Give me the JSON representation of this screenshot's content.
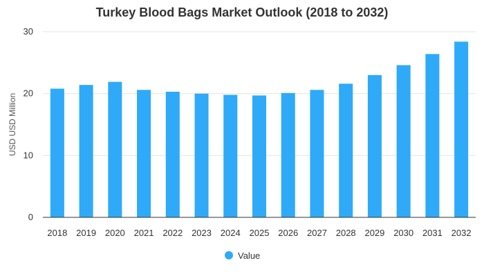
{
  "chart_data": {
    "type": "bar",
    "title": "Turkey Blood Bags Market Outlook (2018 to 2032)",
    "xlabel": "",
    "ylabel": "USD USD Million",
    "ylim": [
      0,
      30
    ],
    "yticks": [
      0,
      10,
      20,
      30
    ],
    "grid": true,
    "legend_position": "bottom",
    "categories": [
      "2018",
      "2019",
      "2020",
      "2021",
      "2022",
      "2023",
      "2024",
      "2025",
      "2026",
      "2027",
      "2028",
      "2029",
      "2030",
      "2031",
      "2032"
    ],
    "series": [
      {
        "name": "Value",
        "color": "#2eaaf8",
        "values": [
          20.8,
          21.4,
          21.9,
          20.6,
          20.3,
          20.0,
          19.8,
          19.7,
          20.1,
          20.6,
          21.6,
          23.0,
          24.6,
          26.4,
          28.4
        ]
      }
    ]
  }
}
